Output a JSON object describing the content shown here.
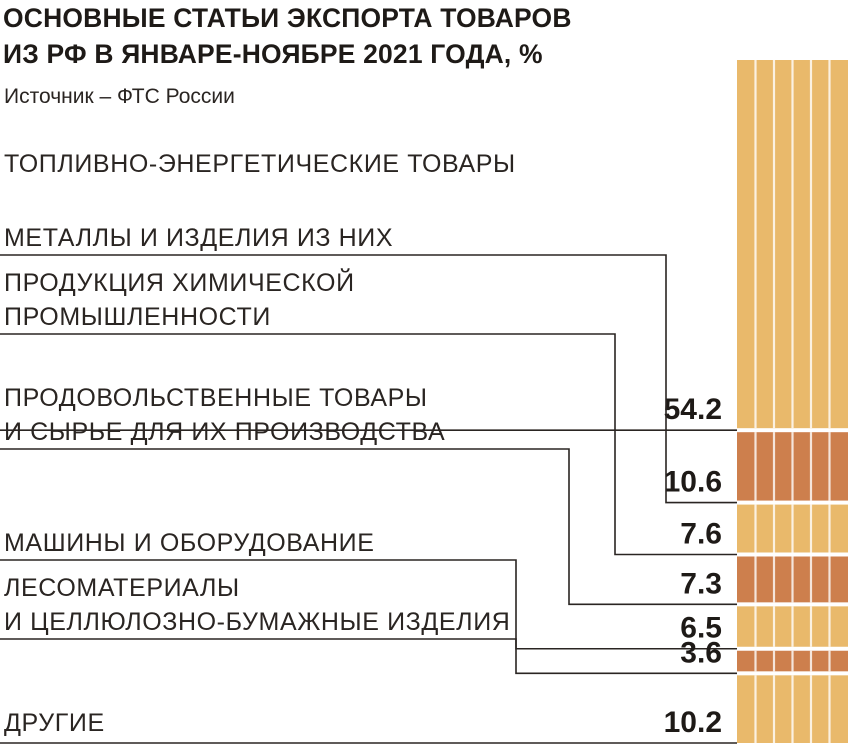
{
  "header": {
    "title_line1": "ОСНОВНЫЕ СТАТЬИ ЭКСПОРТА ТОВАРОВ",
    "title_line2": "ИЗ РФ В ЯНВАРЕ-НОЯБРЕ 2021 ГОДА, %",
    "source": "Источник – ФТС России"
  },
  "colors": {
    "light": "#e9b96b",
    "dark": "#cd7f4d",
    "text": "#1e1a17",
    "line": "#2a2522"
  },
  "chart_data": {
    "type": "bar",
    "orientation": "stacked-vertical",
    "title": "ОСНОВНЫЕ СТАТЬИ ЭКСПОРТА ТОВАРОВ ИЗ РФ В ЯНВАРЕ-НОЯБРЕ 2021 ГОДА, %",
    "unit": "%",
    "categories": [
      [
        "ТОПЛИВНО-ЭНЕРГЕТИЧЕСКИЕ ТОВАРЫ"
      ],
      [
        "МЕТАЛЛЫ И ИЗДЕЛИЯ ИЗ НИХ"
      ],
      [
        "ПРОДУКЦИЯ ХИМИЧЕСКОЙ",
        "ПРОМЫШЛЕННОСТИ"
      ],
      [
        "ПРОДОВОЛЬСТВЕННЫЕ ТОВАРЫ",
        "И СЫРЬЕ ДЛЯ ИХ ПРОИЗВОДСТВА"
      ],
      [
        "МАШИНЫ И ОБОРУДОВАНИЕ"
      ],
      [
        "ЛЕСОМАТЕРИАЛЫ",
        "И ЦЕЛЛЮЛОЗНО-БУМАЖНЫЕ ИЗДЕЛИЯ"
      ],
      [
        "ДРУГИЕ"
      ]
    ],
    "value_labels": [
      "54.2",
      "10.6",
      "7.6",
      "7.3",
      "6.5",
      "3.6",
      "10.2"
    ],
    "values": [
      54.2,
      10.6,
      7.6,
      7.3,
      6.5,
      3.6,
      10.2
    ],
    "segment_colors": [
      "light",
      "dark",
      "light",
      "dark",
      "light",
      "dark",
      "light"
    ]
  }
}
